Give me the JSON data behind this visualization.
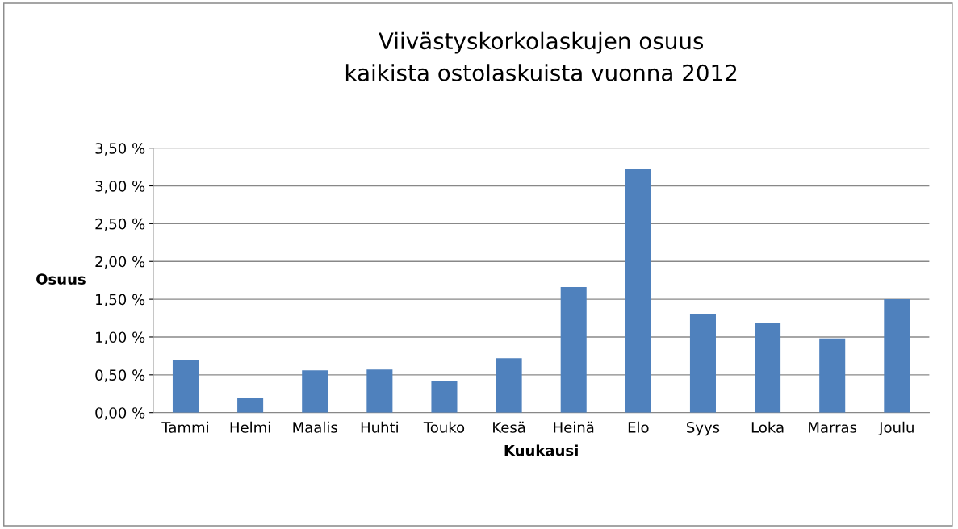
{
  "chart_data": {
    "type": "bar",
    "title": "Viivästyskorkolaskujen osuus\nkaikista ostolaskuista vuonna 2012",
    "xlabel": "Kuukausi",
    "ylabel": "Osuus",
    "categories": [
      "Tammi",
      "Helmi",
      "Maalis",
      "Huhti",
      "Touko",
      "Kesä",
      "Heinä",
      "Elo",
      "Syys",
      "Loka",
      "Marras",
      "Joulu"
    ],
    "values": [
      0.69,
      0.19,
      0.56,
      0.57,
      0.42,
      0.72,
      1.66,
      3.22,
      1.3,
      1.18,
      0.98,
      1.5
    ],
    "color": "#4f81bd",
    "ylim": [
      0,
      3.5
    ],
    "yticks": [
      {
        "value": 0,
        "label": "0,00 %"
      },
      {
        "value": 0.5,
        "label": "0,50 %"
      },
      {
        "value": 1.0,
        "label": "1,00 %"
      },
      {
        "value": 1.5,
        "label": "1,50 %"
      },
      {
        "value": 2.0,
        "label": "2,00 %"
      },
      {
        "value": 2.5,
        "label": "2,50 %"
      },
      {
        "value": 3.0,
        "label": "3,00 %"
      },
      {
        "value": 3.5,
        "label": "3,50 %"
      }
    ],
    "grid": "y"
  }
}
